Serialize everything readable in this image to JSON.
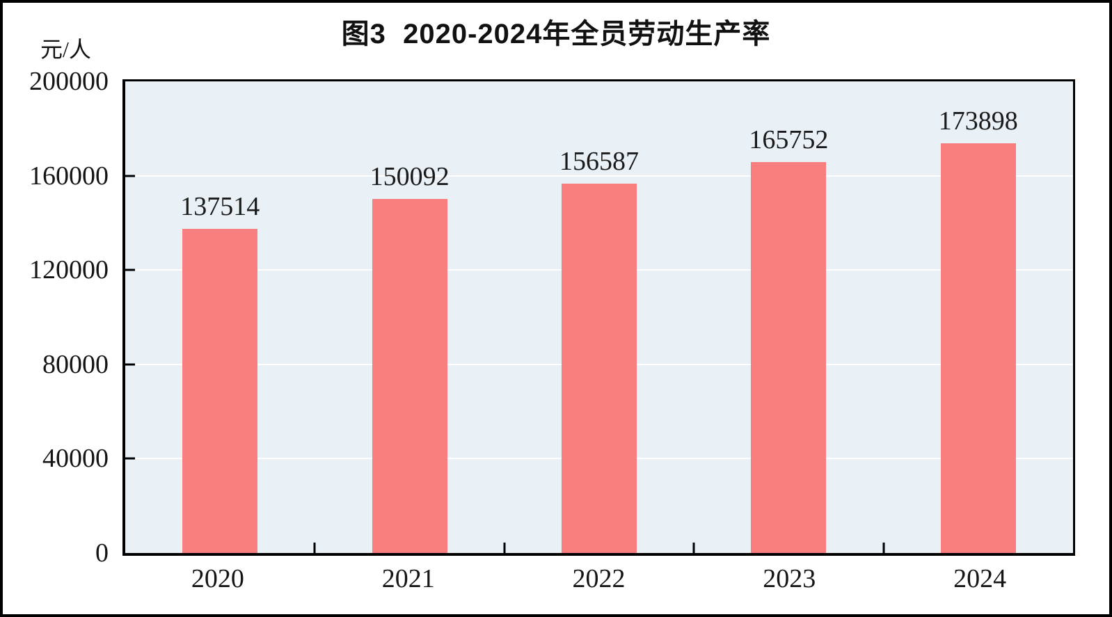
{
  "page": {
    "title": "图3  2020-2024年全员劳动生产率",
    "unit_label": "元/人"
  },
  "chart_data": {
    "type": "bar",
    "title": "图3  2020-2024年全员劳动生产率",
    "xlabel": "",
    "ylabel": "元/人",
    "categories": [
      "2020",
      "2021",
      "2022",
      "2023",
      "2024"
    ],
    "values": [
      137514,
      150092,
      156587,
      165752,
      173898
    ],
    "data_labels": [
      "137514",
      "150092",
      "156587",
      "165752",
      "173898"
    ],
    "ylim": [
      0,
      200000
    ],
    "yticks": [
      0,
      40000,
      80000,
      120000,
      160000,
      200000
    ],
    "grid": "horizontal white gridlines at y tick positions, ticks drawn inside axes",
    "legend": "none",
    "colors": {
      "bar": "#f97f7f",
      "plot_background": "#e9f1f6",
      "gridline": "#ffffff",
      "axis": "#000000",
      "text": "#151515"
    }
  }
}
